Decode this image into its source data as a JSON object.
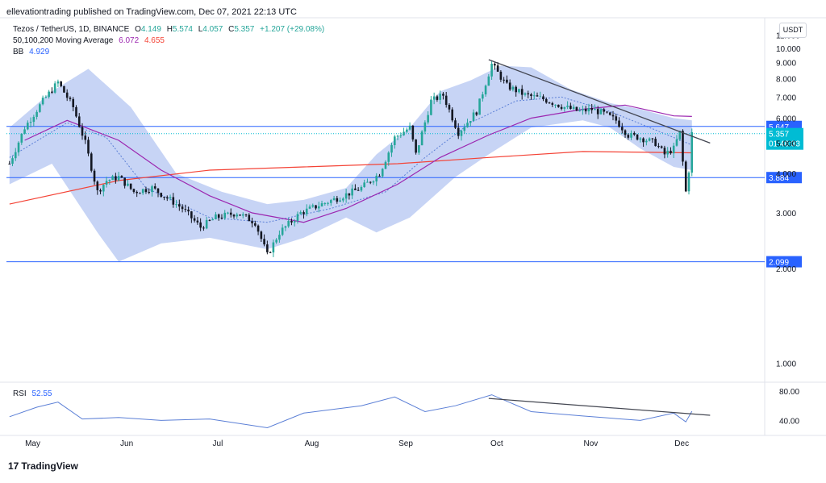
{
  "header": {
    "publisher_line": "ellevationtrading published on TradingView.com, Dec 07, 2021 22:13 UTC"
  },
  "legend": {
    "symbol": "Tezos / TetherUS, 1D, BINANCE",
    "o_label": "O",
    "o_value": "4.149",
    "h_label": "H",
    "h_value": "5.574",
    "l_label": "L",
    "l_value": "4.057",
    "c_label": "C",
    "c_value": "5.357",
    "change": "+1.207 (+29.08%)",
    "ma_label": "50,100,200 Moving Average",
    "ma_value_1": "6.072",
    "ma_value_2": "4.655",
    "bb_label": "BB",
    "bb_value": "4.929"
  },
  "currency_button": "USDT",
  "rsi": {
    "label": "RSI",
    "value": "52.55"
  },
  "footer": {
    "logo_mark": "17",
    "logo_text": "TradingView"
  },
  "colors": {
    "up": "#26a69a",
    "down": "#131722",
    "ma_purple": "#9c27b0",
    "ma_red": "#f44336",
    "bb_fill": "#b4c5f2",
    "bb_mid": "#5b7fd6",
    "hline": "#2962ff",
    "trend": "#434651",
    "rsi_line": "#5b7fd6",
    "price_tag": "#2962ff",
    "current_tag": "#00bcd4"
  },
  "chart_data": [
    {
      "type": "candlestick",
      "title": "Tezos / TetherUS, 1D, BINANCE",
      "x_tick_labels": [
        "May",
        "Jun",
        "Jul",
        "Aug",
        "Sep",
        "Oct",
        "Nov",
        "Dec"
      ],
      "x_tick_dates": [
        "2021-05-01",
        "2021-06-01",
        "2021-07-01",
        "2021-08-01",
        "2021-09-01",
        "2021-10-01",
        "2021-11-01",
        "2021-12-01"
      ],
      "x_range": [
        "2021-04-25",
        "2021-12-31"
      ],
      "y_scale": "log",
      "y_range": [
        0.88,
        12.5
      ],
      "y_tick_labels": [
        "1.000",
        "2.000",
        "3.000",
        "4.000",
        "5.000",
        "6.000",
        "7.000",
        "8.000",
        "9.000",
        "10.000",
        "11.000"
      ],
      "y_ticks": [
        1,
        2,
        3,
        4,
        5,
        6,
        7,
        8,
        9,
        10,
        11
      ],
      "grid": false,
      "price_path": [
        [
          "2021-04-26",
          4.3
        ],
        [
          "2021-05-01",
          5.6
        ],
        [
          "2021-05-07",
          6.8
        ],
        [
          "2021-05-12",
          7.8
        ],
        [
          "2021-05-17",
          6.5
        ],
        [
          "2021-05-21",
          5.0
        ],
        [
          "2021-05-25",
          3.5
        ],
        [
          "2021-05-28",
          3.8
        ],
        [
          "2021-06-01",
          3.9
        ],
        [
          "2021-06-06",
          3.5
        ],
        [
          "2021-06-12",
          3.6
        ],
        [
          "2021-06-18",
          3.3
        ],
        [
          "2021-06-22",
          3.1
        ],
        [
          "2021-06-28",
          2.7
        ],
        [
          "2021-07-03",
          2.9
        ],
        [
          "2021-07-10",
          3.0
        ],
        [
          "2021-07-16",
          2.8
        ],
        [
          "2021-07-20",
          2.2
        ],
        [
          "2021-07-24",
          2.6
        ],
        [
          "2021-07-31",
          3.0
        ],
        [
          "2021-08-07",
          3.2
        ],
        [
          "2021-08-14",
          3.4
        ],
        [
          "2021-08-20",
          3.6
        ],
        [
          "2021-08-26",
          4.0
        ],
        [
          "2021-08-31",
          5.2
        ],
        [
          "2021-09-05",
          5.6
        ],
        [
          "2021-09-07",
          4.6
        ],
        [
          "2021-09-12",
          6.8
        ],
        [
          "2021-09-16",
          7.1
        ],
        [
          "2021-09-21",
          5.4
        ],
        [
          "2021-09-27",
          6.3
        ],
        [
          "2021-10-02",
          8.9
        ],
        [
          "2021-10-07",
          7.6
        ],
        [
          "2021-10-13",
          7.1
        ],
        [
          "2021-10-19",
          6.9
        ],
        [
          "2021-10-26",
          6.5
        ],
        [
          "2021-10-31",
          6.3
        ],
        [
          "2021-11-04",
          6.4
        ],
        [
          "2021-11-08",
          6.2
        ],
        [
          "2021-11-12",
          5.9
        ],
        [
          "2021-11-16",
          5.3
        ],
        [
          "2021-11-20",
          5.2
        ],
        [
          "2021-11-25",
          5.0
        ],
        [
          "2021-11-28",
          4.6
        ],
        [
          "2021-12-01",
          4.8
        ],
        [
          "2021-12-03",
          5.4
        ],
        [
          "2021-12-05",
          3.5
        ],
        [
          "2021-12-06",
          4.1
        ],
        [
          "2021-12-07",
          5.357
        ]
      ],
      "ma_short_path": [
        [
          "2021-05-01",
          5.1
        ],
        [
          "2021-05-15",
          5.9
        ],
        [
          "2021-06-01",
          5.1
        ],
        [
          "2021-06-15",
          4.1
        ],
        [
          "2021-07-01",
          3.4
        ],
        [
          "2021-07-15",
          3.0
        ],
        [
          "2021-08-01",
          2.8
        ],
        [
          "2021-08-15",
          3.1
        ],
        [
          "2021-09-01",
          3.7
        ],
        [
          "2021-09-15",
          4.5
        ],
        [
          "2021-10-01",
          5.3
        ],
        [
          "2021-10-15",
          6.0
        ],
        [
          "2021-11-01",
          6.4
        ],
        [
          "2021-11-15",
          6.6
        ],
        [
          "2021-12-01",
          6.1
        ],
        [
          "2021-12-07",
          6.072
        ]
      ],
      "ma_long_path": [
        [
          "2021-04-26",
          3.2
        ],
        [
          "2021-06-01",
          3.8
        ],
        [
          "2021-07-01",
          4.1
        ],
        [
          "2021-08-01",
          4.2
        ],
        [
          "2021-09-01",
          4.3
        ],
        [
          "2021-10-01",
          4.5
        ],
        [
          "2021-11-01",
          4.7
        ],
        [
          "2021-12-07",
          4.655
        ]
      ],
      "bb_upper_path": [
        [
          "2021-04-26",
          5.6
        ],
        [
          "2021-05-10",
          7.3
        ],
        [
          "2021-05-22",
          8.6
        ],
        [
          "2021-06-05",
          6.5
        ],
        [
          "2021-06-20",
          4.0
        ],
        [
          "2021-07-05",
          3.5
        ],
        [
          "2021-07-20",
          3.2
        ],
        [
          "2021-08-01",
          3.3
        ],
        [
          "2021-08-15",
          3.6
        ],
        [
          "2021-08-25",
          4.6
        ],
        [
          "2021-09-05",
          5.6
        ],
        [
          "2021-09-15",
          7.3
        ],
        [
          "2021-09-25",
          7.9
        ],
        [
          "2021-10-05",
          8.8
        ],
        [
          "2021-10-15",
          8.7
        ],
        [
          "2021-10-28",
          7.4
        ],
        [
          "2021-11-10",
          6.7
        ],
        [
          "2021-11-20",
          6.4
        ],
        [
          "2021-12-01",
          6.0
        ],
        [
          "2021-12-07",
          5.9
        ]
      ],
      "bb_lower_path": [
        [
          "2021-04-26",
          3.7
        ],
        [
          "2021-05-10",
          4.3
        ],
        [
          "2021-05-25",
          2.6
        ],
        [
          "2021-06-01",
          2.1
        ],
        [
          "2021-06-15",
          2.4
        ],
        [
          "2021-07-01",
          2.5
        ],
        [
          "2021-07-20",
          2.3
        ],
        [
          "2021-08-01",
          2.5
        ],
        [
          "2021-08-15",
          2.9
        ],
        [
          "2021-08-25",
          2.6
        ],
        [
          "2021-09-05",
          2.9
        ],
        [
          "2021-09-20",
          3.9
        ],
        [
          "2021-10-01",
          4.6
        ],
        [
          "2021-10-15",
          5.6
        ],
        [
          "2021-11-01",
          5.9
        ],
        [
          "2021-11-10",
          5.6
        ],
        [
          "2021-11-20",
          4.8
        ],
        [
          "2021-12-01",
          4.2
        ],
        [
          "2021-12-07",
          4.1
        ]
      ],
      "bb_mid_path": [
        [
          "2021-04-26",
          4.5
        ],
        [
          "2021-05-15",
          5.8
        ],
        [
          "2021-05-28",
          5.2
        ],
        [
          "2021-06-10",
          3.6
        ],
        [
          "2021-07-01",
          2.9
        ],
        [
          "2021-07-20",
          2.8
        ],
        [
          "2021-08-10",
          3.1
        ],
        [
          "2021-08-28",
          3.5
        ],
        [
          "2021-09-10",
          4.5
        ],
        [
          "2021-09-25",
          5.8
        ],
        [
          "2021-10-10",
          6.8
        ],
        [
          "2021-10-25",
          7.0
        ],
        [
          "2021-11-10",
          6.3
        ],
        [
          "2021-11-25",
          5.5
        ],
        [
          "2021-12-07",
          4.929
        ]
      ],
      "horizontal_levels": [
        {
          "label": "5.647",
          "value": 5.647
        },
        {
          "label": "3.884",
          "value": 3.884
        },
        {
          "label": "2.099",
          "value": 2.099
        }
      ],
      "current_price": {
        "label": "5.357",
        "countdown": "01:46:33",
        "value": 5.357
      },
      "trendline": [
        [
          "2021-10-01",
          9.2
        ],
        [
          "2021-12-13",
          5.0
        ]
      ]
    },
    {
      "type": "line",
      "title": "RSI",
      "y_tick_labels": [
        "40.00",
        "80.00"
      ],
      "y_ticks": [
        40,
        80
      ],
      "y_range": [
        25,
        90
      ],
      "values_path": [
        [
          "2021-04-26",
          45
        ],
        [
          "2021-05-05",
          58
        ],
        [
          "2021-05-12",
          65
        ],
        [
          "2021-05-20",
          42
        ],
        [
          "2021-06-01",
          44
        ],
        [
          "2021-06-15",
          40
        ],
        [
          "2021-07-01",
          42
        ],
        [
          "2021-07-20",
          30
        ],
        [
          "2021-08-01",
          50
        ],
        [
          "2021-08-20",
          60
        ],
        [
          "2021-08-31",
          72
        ],
        [
          "2021-09-10",
          52
        ],
        [
          "2021-09-20",
          60
        ],
        [
          "2021-10-02",
          75
        ],
        [
          "2021-10-15",
          52
        ],
        [
          "2021-11-01",
          46
        ],
        [
          "2021-11-20",
          40
        ],
        [
          "2021-12-01",
          50
        ],
        [
          "2021-12-05",
          38
        ],
        [
          "2021-12-07",
          52.55
        ]
      ],
      "trendline": [
        [
          "2021-10-01",
          70
        ],
        [
          "2021-12-13",
          47
        ]
      ]
    }
  ]
}
